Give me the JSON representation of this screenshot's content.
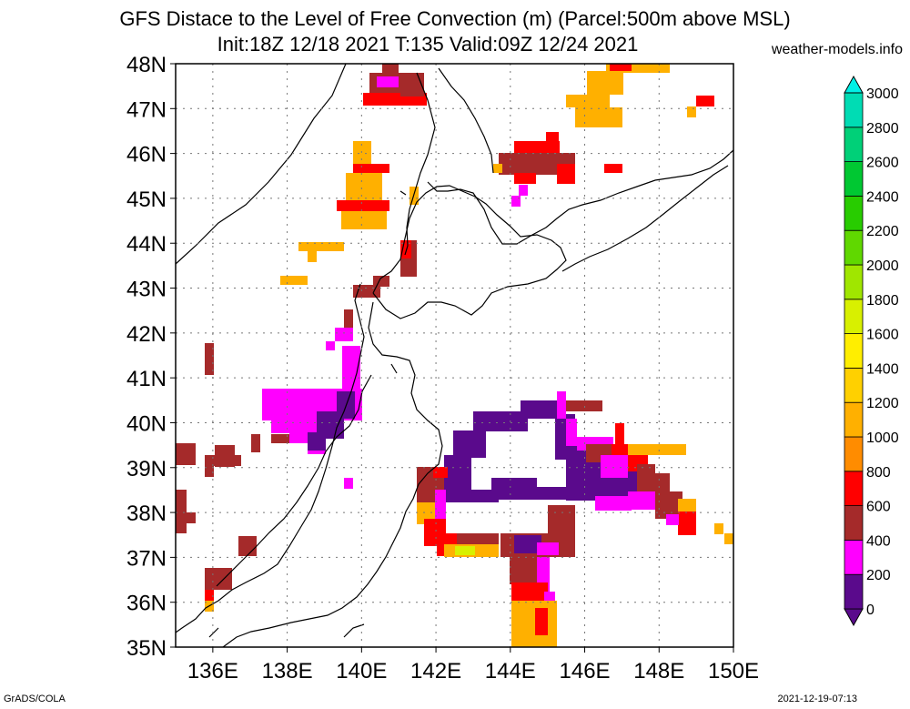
{
  "title_line1": "GFS Distace to the Level of Free Convection (m) (Parcel:500m above MSL)",
  "title_line2": "Init:18Z 12/18 2021 T:135 Valid:09Z 12/24 2021",
  "site": "weather-models.info",
  "footer_left": "GrADS/COLA",
  "footer_right": "2021-12-19-07:13",
  "axes": {
    "lat_labels": [
      "35N",
      "36N",
      "37N",
      "38N",
      "39N",
      "40N",
      "41N",
      "42N",
      "43N",
      "44N",
      "45N",
      "46N",
      "47N",
      "48N"
    ],
    "lon_labels": [
      "136E",
      "138E",
      "140E",
      "142E",
      "144E",
      "146E",
      "148E",
      "150E"
    ],
    "lon_range": [
      135,
      150
    ],
    "lat_range": [
      35,
      48
    ],
    "grid": "dotted"
  },
  "colorbar": {
    "levels": [
      0,
      200,
      400,
      600,
      800,
      1000,
      1200,
      1400,
      1600,
      1800,
      2000,
      2200,
      2400,
      2600,
      2800,
      3000
    ],
    "labels": [
      "0",
      "200",
      "400",
      "600",
      "800",
      "1000",
      "1200",
      "1400",
      "1600",
      "1800",
      "2000",
      "2200",
      "2400",
      "2600",
      "2800",
      "3000"
    ],
    "colors": [
      "#5a0a8c",
      "#ff00ff",
      "#a52a2a",
      "#ff0000",
      "#ff8c00",
      "#ffb000",
      "#ffd000",
      "#ffee00",
      "#d8f000",
      "#a0e600",
      "#60d800",
      "#28cc00",
      "#00c832",
      "#00d078",
      "#00dcb4",
      "#00f0e6"
    ]
  },
  "chart_data": {
    "type": "heatmap",
    "variable": "Distance to the Level of Free Convection (m)",
    "regions": [
      {
        "lon": [
          140.2,
          141.6
        ],
        "lat": [
          46.9,
          47.9
        ],
        "value": 400
      },
      {
        "lon": [
          143.8,
          145.4
        ],
        "lat": [
          45.5,
          46.4
        ],
        "value": 400
      },
      {
        "lon": [
          139.5,
          140.7
        ],
        "lat": [
          44.6,
          45.2
        ],
        "value": 600
      },
      {
        "lon": [
          145.6,
          147.5
        ],
        "lat": [
          46.6,
          47.9
        ],
        "value": 800
      },
      {
        "lon": [
          137.3,
          140.0
        ],
        "lat": [
          39.5,
          40.8
        ],
        "value": 200
      },
      {
        "lon": [
          142.2,
          146.0
        ],
        "lat": [
          37.9,
          40.5
        ],
        "value": 0
      },
      {
        "lon": [
          146.0,
          148.6
        ],
        "lat": [
          37.6,
          39.5
        ],
        "value": 400
      },
      {
        "lon": [
          143.7,
          145.4
        ],
        "lat": [
          35.0,
          37.5
        ],
        "value": 400
      },
      {
        "lon": [
          142.0,
          143.2
        ],
        "lat": [
          37.0,
          38.0
        ],
        "value": 800
      },
      {
        "lon": [
          135.0,
          136.7
        ],
        "lat": [
          37.8,
          39.6
        ],
        "value": 400
      }
    ]
  }
}
